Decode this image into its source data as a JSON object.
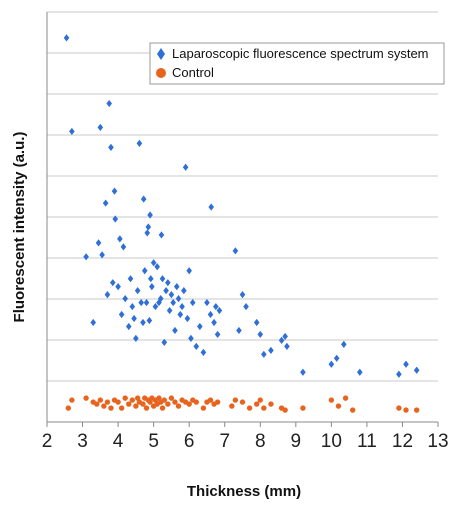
{
  "chart_data": {
    "type": "scatter",
    "xlabel": "Thickness (mm)",
    "ylabel": "Fluorescent intensity (a.u.)",
    "xlim": [
      2,
      13
    ],
    "ylim": [
      0,
      10.3
    ],
    "x_ticks": [
      2,
      3,
      4,
      5,
      6,
      7,
      8,
      9,
      10,
      11,
      12,
      13
    ],
    "y_tick_labels_shown": false,
    "grid": "horizontal",
    "legend": "top-right",
    "series": [
      {
        "name": "Laparoscopic fluorescence spectrum system",
        "marker": "diamond",
        "color": "#2e6fd8",
        "points": [
          [
            2.55,
            9.65
          ],
          [
            2.7,
            7.3
          ],
          [
            3.1,
            4.15
          ],
          [
            3.3,
            2.5
          ],
          [
            3.45,
            4.5
          ],
          [
            3.5,
            7.4
          ],
          [
            3.55,
            4.2
          ],
          [
            3.65,
            5.5
          ],
          [
            3.7,
            3.2
          ],
          [
            3.75,
            8.0
          ],
          [
            3.8,
            6.9
          ],
          [
            3.85,
            3.5
          ],
          [
            3.9,
            5.8
          ],
          [
            3.92,
            5.1
          ],
          [
            4.0,
            3.4
          ],
          [
            4.05,
            4.6
          ],
          [
            4.1,
            2.7
          ],
          [
            4.15,
            4.4
          ],
          [
            4.2,
            3.1
          ],
          [
            4.3,
            2.4
          ],
          [
            4.35,
            3.6
          ],
          [
            4.4,
            2.9
          ],
          [
            4.45,
            2.6
          ],
          [
            4.5,
            2.1
          ],
          [
            4.55,
            3.3
          ],
          [
            4.6,
            7.0
          ],
          [
            4.65,
            3.0
          ],
          [
            4.7,
            2.5
          ],
          [
            4.72,
            5.6
          ],
          [
            4.75,
            3.8
          ],
          [
            4.8,
            3.0
          ],
          [
            4.82,
            4.75
          ],
          [
            4.85,
            4.9
          ],
          [
            4.88,
            2.55
          ],
          [
            4.9,
            5.2
          ],
          [
            4.92,
            3.6
          ],
          [
            4.95,
            3.4
          ],
          [
            5.0,
            4.0
          ],
          [
            5.05,
            2.9
          ],
          [
            5.1,
            3.9
          ],
          [
            5.15,
            3.0
          ],
          [
            5.2,
            3.1
          ],
          [
            5.22,
            4.7
          ],
          [
            5.25,
            3.6
          ],
          [
            5.3,
            2.0
          ],
          [
            5.35,
            3.3
          ],
          [
            5.4,
            3.5
          ],
          [
            5.45,
            2.8
          ],
          [
            5.5,
            3.2
          ],
          [
            5.55,
            3.0
          ],
          [
            5.6,
            2.3
          ],
          [
            5.65,
            3.4
          ],
          [
            5.7,
            3.1
          ],
          [
            5.75,
            2.7
          ],
          [
            5.8,
            2.9
          ],
          [
            5.85,
            3.3
          ],
          [
            5.9,
            6.4
          ],
          [
            5.95,
            2.6
          ],
          [
            6.0,
            3.8
          ],
          [
            6.05,
            2.1
          ],
          [
            6.1,
            3.0
          ],
          [
            6.2,
            1.9
          ],
          [
            6.3,
            2.4
          ],
          [
            6.4,
            1.75
          ],
          [
            6.5,
            3.0
          ],
          [
            6.6,
            2.7
          ],
          [
            6.62,
            5.4
          ],
          [
            6.7,
            2.5
          ],
          [
            6.75,
            2.9
          ],
          [
            6.8,
            2.2
          ],
          [
            6.85,
            2.8
          ],
          [
            7.3,
            4.3
          ],
          [
            7.4,
            2.3
          ],
          [
            7.5,
            3.2
          ],
          [
            7.6,
            2.9
          ],
          [
            7.9,
            2.5
          ],
          [
            8.0,
            2.2
          ],
          [
            8.1,
            1.7
          ],
          [
            8.3,
            1.8
          ],
          [
            8.6,
            2.05
          ],
          [
            8.7,
            2.15
          ],
          [
            8.75,
            1.9
          ],
          [
            9.2,
            1.25
          ],
          [
            10.0,
            1.45
          ],
          [
            10.15,
            1.6
          ],
          [
            10.35,
            1.95
          ],
          [
            10.8,
            1.25
          ],
          [
            11.9,
            1.2
          ],
          [
            12.1,
            1.45
          ],
          [
            12.4,
            1.3
          ]
        ]
      },
      {
        "name": "Control",
        "marker": "circle",
        "color": "#e8641e",
        "points": [
          [
            2.6,
            0.35
          ],
          [
            2.7,
            0.55
          ],
          [
            3.1,
            0.6
          ],
          [
            3.3,
            0.5
          ],
          [
            3.4,
            0.45
          ],
          [
            3.5,
            0.55
          ],
          [
            3.6,
            0.4
          ],
          [
            3.7,
            0.5
          ],
          [
            3.8,
            0.35
          ],
          [
            3.9,
            0.55
          ],
          [
            4.0,
            0.5
          ],
          [
            4.1,
            0.35
          ],
          [
            4.2,
            0.6
          ],
          [
            4.3,
            0.45
          ],
          [
            4.4,
            0.55
          ],
          [
            4.5,
            0.4
          ],
          [
            4.55,
            0.6
          ],
          [
            4.6,
            0.5
          ],
          [
            4.7,
            0.45
          ],
          [
            4.75,
            0.6
          ],
          [
            4.8,
            0.35
          ],
          [
            4.85,
            0.55
          ],
          [
            4.9,
            0.5
          ],
          [
            4.95,
            0.6
          ],
          [
            5.0,
            0.4
          ],
          [
            5.05,
            0.55
          ],
          [
            5.1,
            0.45
          ],
          [
            5.15,
            0.6
          ],
          [
            5.2,
            0.5
          ],
          [
            5.25,
            0.35
          ],
          [
            5.3,
            0.55
          ],
          [
            5.4,
            0.45
          ],
          [
            5.5,
            0.6
          ],
          [
            5.6,
            0.5
          ],
          [
            5.7,
            0.4
          ],
          [
            5.8,
            0.55
          ],
          [
            5.9,
            0.5
          ],
          [
            6.0,
            0.45
          ],
          [
            6.1,
            0.55
          ],
          [
            6.2,
            0.5
          ],
          [
            6.4,
            0.35
          ],
          [
            6.5,
            0.5
          ],
          [
            6.6,
            0.55
          ],
          [
            6.7,
            0.45
          ],
          [
            6.8,
            0.5
          ],
          [
            7.2,
            0.4
          ],
          [
            7.3,
            0.55
          ],
          [
            7.5,
            0.5
          ],
          [
            7.7,
            0.35
          ],
          [
            7.9,
            0.45
          ],
          [
            8.0,
            0.55
          ],
          [
            8.1,
            0.35
          ],
          [
            8.3,
            0.45
          ],
          [
            8.6,
            0.35
          ],
          [
            8.7,
            0.3
          ],
          [
            9.2,
            0.35
          ],
          [
            10.0,
            0.55
          ],
          [
            10.2,
            0.4
          ],
          [
            10.4,
            0.6
          ],
          [
            10.6,
            0.3
          ],
          [
            11.9,
            0.35
          ],
          [
            12.1,
            0.3
          ],
          [
            12.4,
            0.3
          ]
        ]
      }
    ]
  }
}
